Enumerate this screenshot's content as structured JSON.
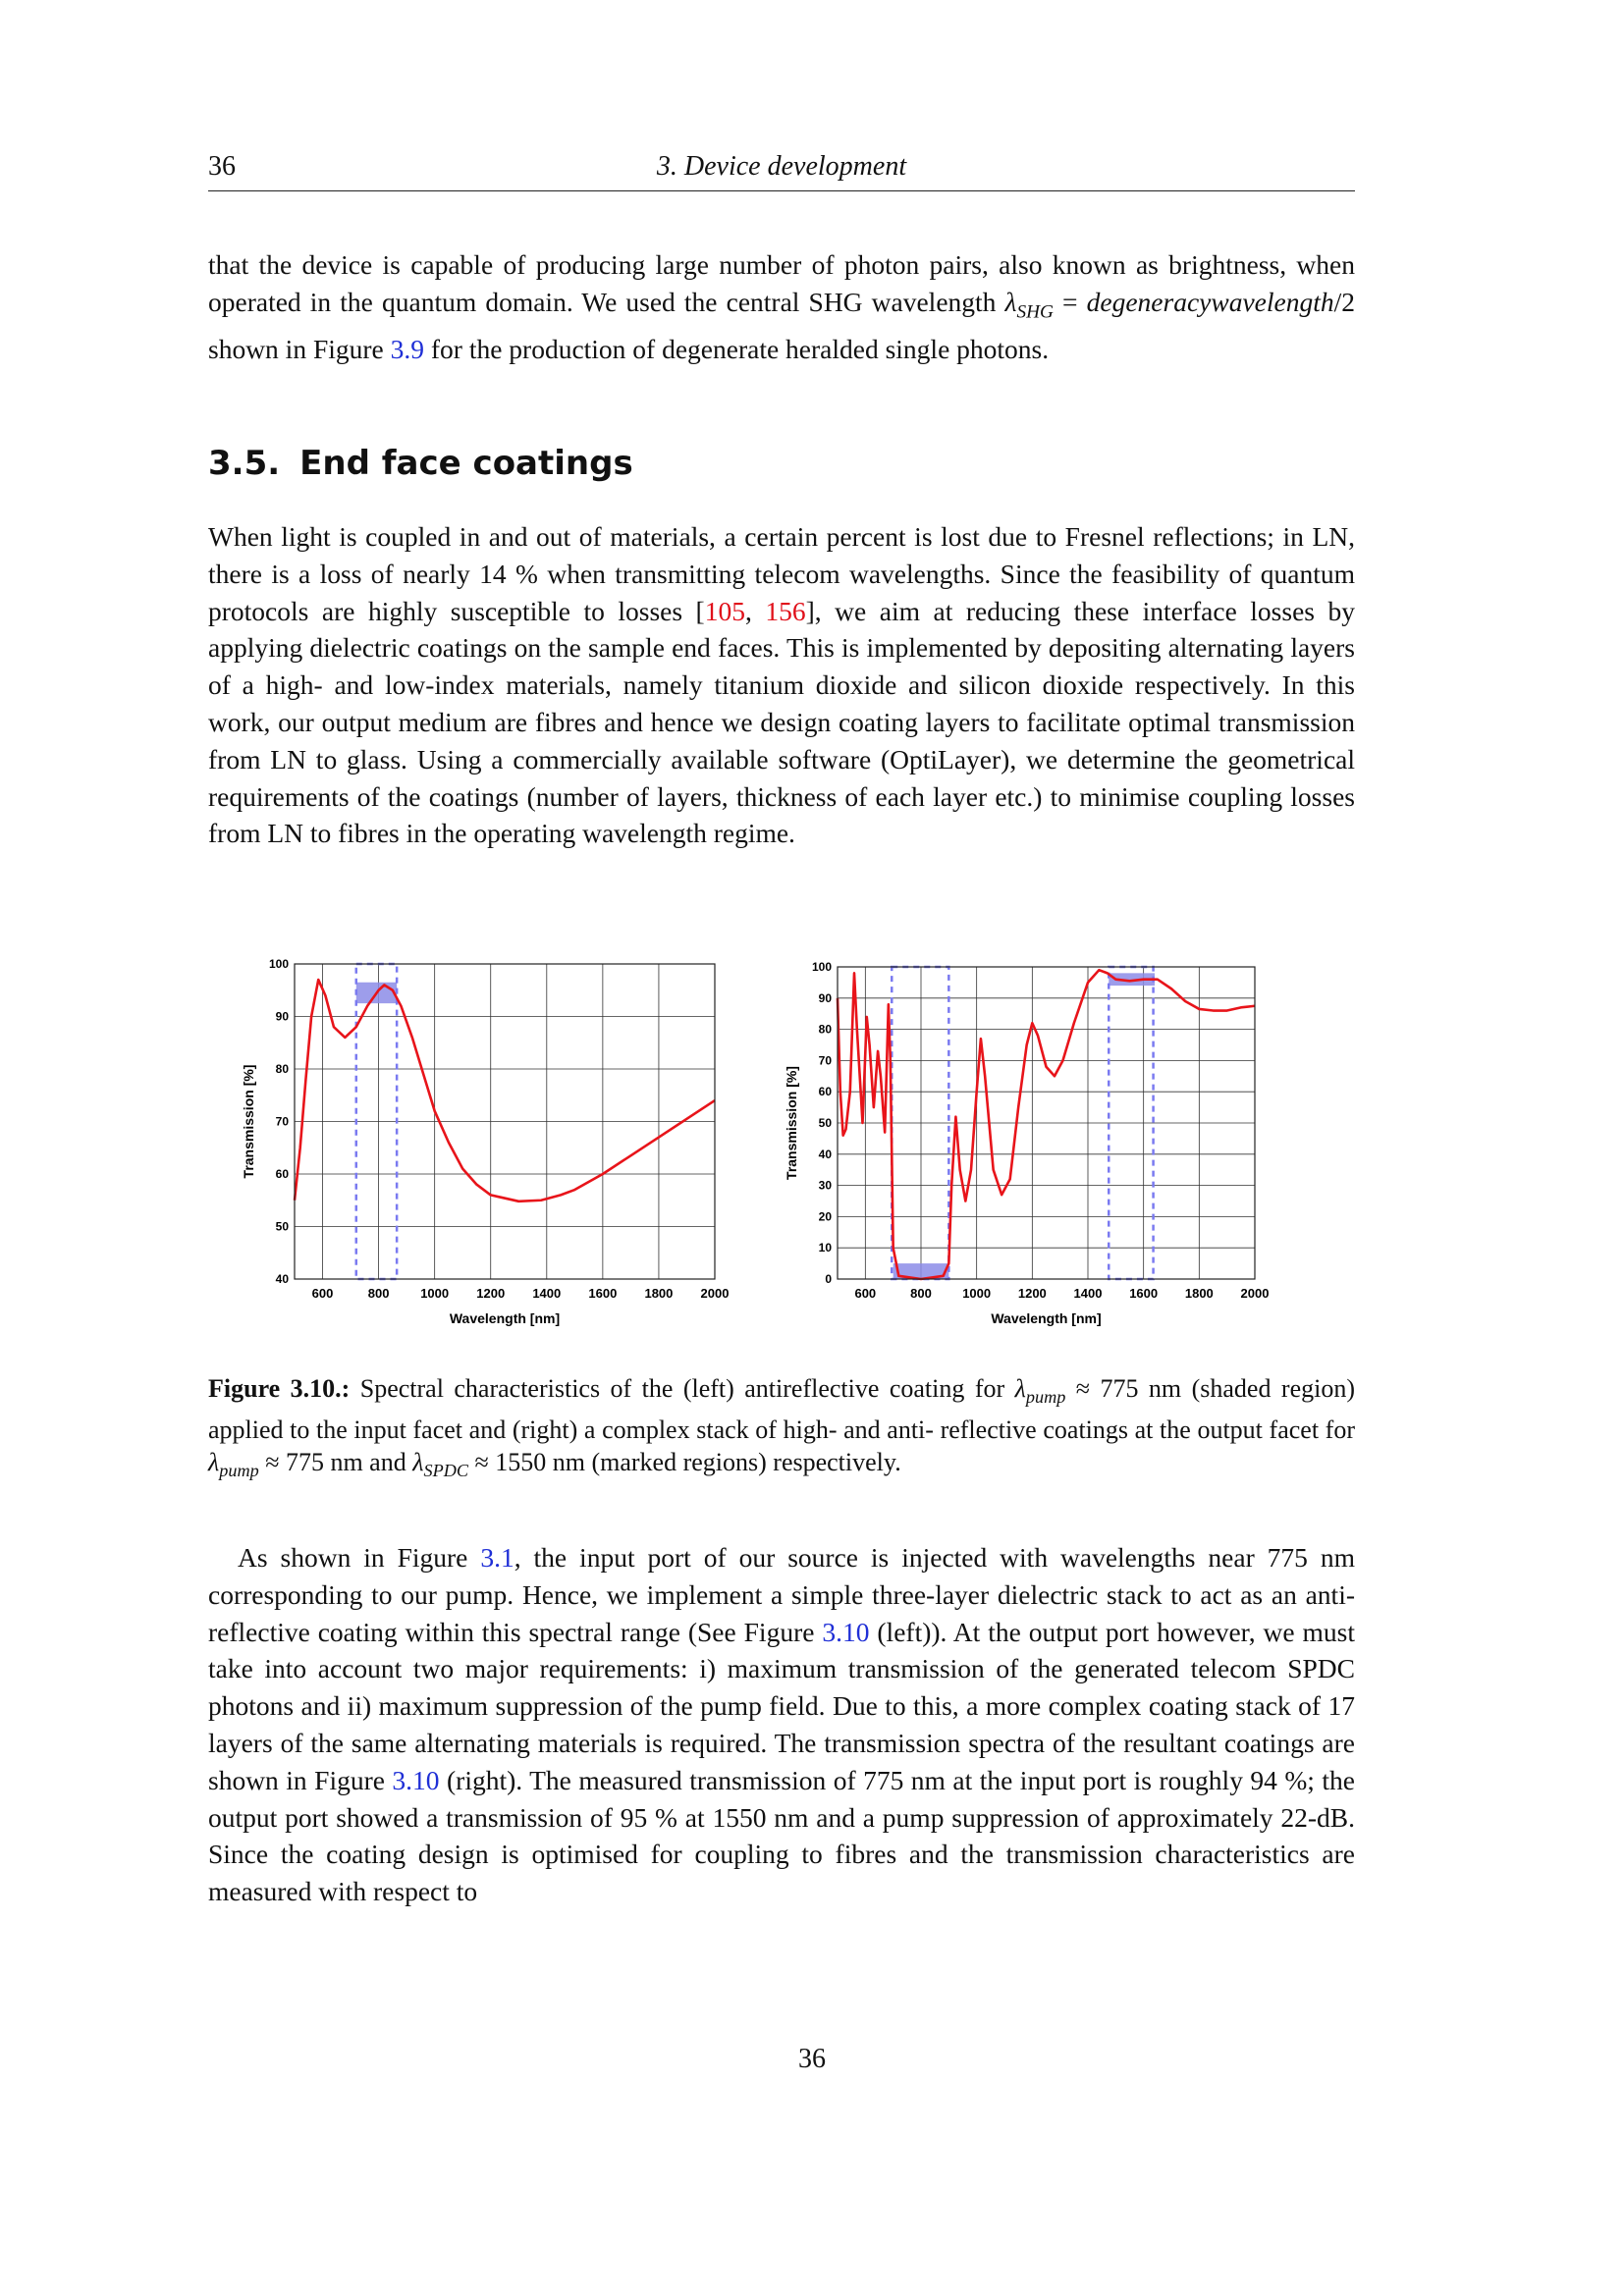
{
  "header": {
    "page_number": "36",
    "chapter": "3. Device development"
  },
  "paragraphs": {
    "p1": [
      {
        "t": "that the device is capable of producing large number of photon pairs, also known as brightness, when operated in the quantum domain. We used the central SHG wavelength "
      },
      {
        "t": "λ",
        "s": "it"
      },
      {
        "t": "SHG",
        "s": "sub"
      },
      {
        "t": " = "
      },
      {
        "t": "degeneracywavelength",
        "s": "it"
      },
      {
        "t": "/2 shown in Figure "
      },
      {
        "t": "3.9",
        "s": "blue"
      },
      {
        "t": " for the production of degenerate heralded single photons."
      }
    ],
    "p2": [
      {
        "t": "When light is coupled in and out of materials, a certain percent is lost due to Fresnel reflections; in LN, there is a loss of nearly 14 % when transmitting telecom wavelengths. Since the feasibility of quantum protocols are highly susceptible to losses ["
      },
      {
        "t": "105",
        "s": "red"
      },
      {
        "t": ", "
      },
      {
        "t": "156",
        "s": "red"
      },
      {
        "t": "], we aim at reducing these interface losses by applying dielectric coatings on the sample end faces.  This is implemented by depositing alternating layers of a high- and low-index materials, namely titanium dioxide and silicon dioxide respectively. In this work, our output medium are fibres and hence we design coating layers to facilitate optimal transmission from LN to glass. Using a commercially available software (OptiLayer), we determine the geometrical requirements of the coatings (number of layers, thickness of each layer etc.) to minimise coupling losses from LN to fibres in the operating wavelength regime."
      }
    ],
    "p3": [
      {
        "t": "As shown in Figure "
      },
      {
        "t": "3.1",
        "s": "blue"
      },
      {
        "t": ", the input port of our source is injected with wavelengths near 775 nm corresponding to our pump. Hence, we implement a simple three-layer dielectric stack to act as an anti-reflective coating within this spectral range (See Figure "
      },
      {
        "t": "3.10",
        "s": "blue"
      },
      {
        "t": " (left)). At the output port however, we must take into account two major requirements: i) maximum transmission of the generated telecom SPDC photons and ii) maximum suppression of the pump field. Due to this, a more complex coating stack of 17 layers of the same alternating materials is required. The transmission spectra of the resultant coatings are shown in Figure "
      },
      {
        "t": "3.10",
        "s": "blue"
      },
      {
        "t": " (right). The measured transmission of 775 nm at the input port is roughly 94 %; the output port showed a transmission of 95 % at 1550 nm and a pump suppression of approximately 22-dB. Since the coating design is optimised for coupling to fibres and the transmission characteristics are measured with respect to"
      }
    ]
  },
  "section": {
    "number": "3.5.",
    "title": "End face coatings"
  },
  "caption": [
    {
      "t": "Figure 3.10.:",
      "s": "bold"
    },
    {
      "t": " Spectral characteristics of the (left) antireflective coating for "
    },
    {
      "t": "λ",
      "s": "it"
    },
    {
      "t": "pump",
      "s": "sub"
    },
    {
      "t": " ≈ 775 nm (shaded region) applied to the input facet and (right) a complex stack of high- and anti- reflective coatings at the output facet for "
    },
    {
      "t": "λ",
      "s": "it"
    },
    {
      "t": "pump",
      "s": "sub"
    },
    {
      "t": " ≈ 775 nm and "
    },
    {
      "t": "λ",
      "s": "it"
    },
    {
      "t": "SPDC",
      "s": "sub"
    },
    {
      "t": " ≈ 1550 nm (marked regions) respectively."
    }
  ],
  "footer": {
    "page_number": "36"
  },
  "colors": {
    "line": "#e8141a",
    "shade": "#8c8ce8",
    "dashed_box": "#7a7af0",
    "grid": "#333333",
    "link_blue": "#1f2fd6",
    "link_red": "#e0101a"
  },
  "chart_data": [
    {
      "type": "line",
      "xlabel": "Wavelength [nm]",
      "ylabel": "Transmission [%]",
      "xlim": [
        500,
        2000
      ],
      "ylim": [
        40,
        100
      ],
      "xticks": [
        600,
        800,
        1000,
        1200,
        1400,
        1600,
        1800,
        2000
      ],
      "yticks": [
        40,
        50,
        60,
        70,
        80,
        90,
        100
      ],
      "grid": true,
      "x": [
        500,
        520,
        540,
        560,
        585,
        610,
        640,
        680,
        720,
        760,
        800,
        820,
        850,
        880,
        920,
        960,
        1000,
        1050,
        1100,
        1150,
        1200,
        1300,
        1380,
        1450,
        1500,
        1600,
        1700,
        1800,
        1900,
        2000
      ],
      "y": [
        55,
        65,
        78,
        90,
        97,
        94,
        88,
        86,
        88,
        92,
        95,
        96,
        95,
        92,
        86,
        79,
        72,
        66,
        61,
        58,
        56,
        54.8,
        55,
        56,
        57,
        60,
        63.5,
        67,
        70.5,
        74
      ],
      "shaded_regions": [
        {
          "x": [
            720,
            865
          ],
          "y": [
            92.5,
            96.5
          ]
        }
      ],
      "dashed_boxes": [
        {
          "x": [
            720,
            865
          ]
        }
      ]
    },
    {
      "type": "line",
      "xlabel": "Wavelength [nm]",
      "ylabel": "Transmission [%]",
      "xlim": [
        500,
        2000
      ],
      "ylim": [
        0,
        100
      ],
      "xticks": [
        600,
        800,
        1000,
        1200,
        1400,
        1600,
        1800,
        2000
      ],
      "yticks": [
        0,
        10,
        20,
        30,
        40,
        50,
        60,
        70,
        80,
        90,
        100
      ],
      "grid": true,
      "x": [
        500,
        510,
        520,
        530,
        545,
        560,
        570,
        590,
        605,
        615,
        630,
        645,
        655,
        670,
        683,
        690,
        700,
        720,
        800,
        880,
        900,
        910,
        925,
        940,
        960,
        980,
        1000,
        1015,
        1030,
        1060,
        1090,
        1120,
        1150,
        1180,
        1200,
        1220,
        1250,
        1280,
        1310,
        1350,
        1400,
        1440,
        1470,
        1500,
        1550,
        1600,
        1650,
        1700,
        1750,
        1800,
        1850,
        1900,
        1950,
        2000
      ],
      "y": [
        90,
        60,
        46,
        48,
        60,
        98,
        80,
        50,
        84,
        75,
        55,
        73,
        65,
        47,
        88,
        70,
        10,
        1,
        0,
        1,
        5,
        30,
        52,
        35,
        25,
        35,
        60,
        77,
        65,
        35,
        27,
        32,
        55,
        75,
        82,
        78,
        68,
        65,
        70,
        82,
        95,
        99,
        98,
        96,
        95.5,
        96,
        96,
        93,
        89,
        86.5,
        86,
        86,
        87,
        87.5
      ],
      "shaded_regions": [
        {
          "x": [
            700,
            900
          ],
          "y": [
            0,
            5
          ]
        },
        {
          "x": [
            1475,
            1640
          ],
          "y": [
            94,
            98
          ]
        }
      ],
      "dashed_boxes": [
        {
          "x": [
            695,
            900
          ]
        },
        {
          "x": [
            1475,
            1635
          ]
        }
      ]
    }
  ]
}
